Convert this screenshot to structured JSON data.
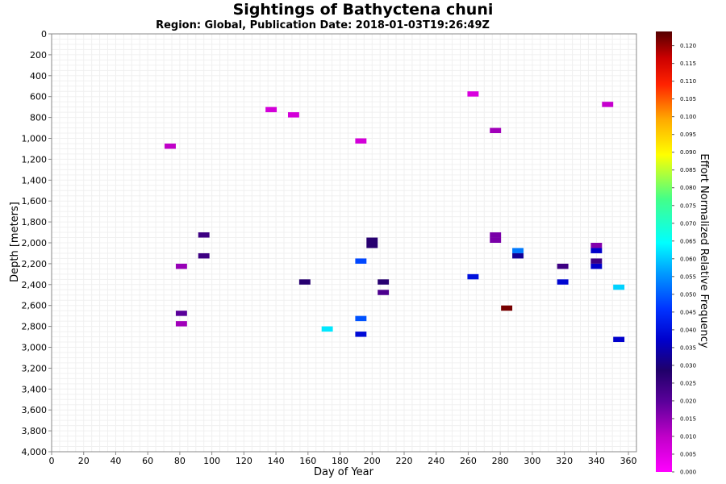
{
  "chart_data": {
    "type": "heatmap",
    "title": "Sightings of Bathyctena chuni",
    "subtitle": "Region: Global, Publication Date: 2018-01-03T19:26:49Z",
    "xlabel": "Day of Year",
    "ylabel": "Depth [meters]",
    "colorbar_label": "Effort Normalized Relative Frequency",
    "xlim": [
      0,
      365
    ],
    "ylim": [
      4000,
      0
    ],
    "x_ticks": [
      "0",
      "20",
      "40",
      "60",
      "80",
      "100",
      "120",
      "140",
      "160",
      "180",
      "200",
      "220",
      "240",
      "260",
      "280",
      "300",
      "320",
      "340",
      "360"
    ],
    "y_ticks": [
      "0",
      "200",
      "400",
      "600",
      "800",
      "1,000",
      "1,200",
      "1,400",
      "1,600",
      "1,800",
      "2,000",
      "2,200",
      "2,400",
      "2,600",
      "2,800",
      "3,000",
      "3,200",
      "3,400",
      "3,600",
      "3,800",
      "4,000"
    ],
    "colorbar_range": [
      0,
      0.124
    ],
    "colorbar_ticks": [
      "0.000",
      "0.005",
      "0.010",
      "0.015",
      "0.020",
      "0.025",
      "0.030",
      "0.035",
      "0.040",
      "0.045",
      "0.050",
      "0.055",
      "0.060",
      "0.065",
      "0.070",
      "0.075",
      "0.080",
      "0.085",
      "0.090",
      "0.095",
      "0.100",
      "0.105",
      "0.110",
      "0.115",
      "0.120"
    ],
    "grid": true,
    "cells": [
      {
        "day": 74,
        "depth": 1075,
        "value": 0.01
      },
      {
        "day": 81,
        "depth": 2225,
        "value": 0.014
      },
      {
        "day": 81,
        "depth": 2675,
        "value": 0.02
      },
      {
        "day": 81,
        "depth": 2775,
        "value": 0.013
      },
      {
        "day": 95,
        "depth": 1925,
        "value": 0.024
      },
      {
        "day": 95,
        "depth": 2125,
        "value": 0.024
      },
      {
        "day": 137,
        "depth": 725,
        "value": 0.007
      },
      {
        "day": 151,
        "depth": 775,
        "value": 0.007
      },
      {
        "day": 158,
        "depth": 2375,
        "value": 0.027
      },
      {
        "day": 172,
        "depth": 2825,
        "value": 0.063
      },
      {
        "day": 193,
        "depth": 1025,
        "value": 0.007
      },
      {
        "day": 193,
        "depth": 2175,
        "value": 0.048
      },
      {
        "day": 193,
        "depth": 2725,
        "value": 0.049
      },
      {
        "day": 193,
        "depth": 2875,
        "value": 0.039
      },
      {
        "day": 200,
        "depth": 1975,
        "value": 0.027
      },
      {
        "day": 200,
        "depth": 2025,
        "value": 0.027
      },
      {
        "day": 207,
        "depth": 2375,
        "value": 0.027
      },
      {
        "day": 207,
        "depth": 2475,
        "value": 0.022
      },
      {
        "day": 263,
        "depth": 575,
        "value": 0.006
      },
      {
        "day": 263,
        "depth": 2325,
        "value": 0.04
      },
      {
        "day": 277,
        "depth": 925,
        "value": 0.013
      },
      {
        "day": 277,
        "depth": 1925,
        "value": 0.017
      },
      {
        "day": 277,
        "depth": 1975,
        "value": 0.017
      },
      {
        "day": 284,
        "depth": 2625,
        "value": 0.122
      },
      {
        "day": 291,
        "depth": 2075,
        "value": 0.053
      },
      {
        "day": 291,
        "depth": 2125,
        "value": 0.032
      },
      {
        "day": 319,
        "depth": 2225,
        "value": 0.024
      },
      {
        "day": 319,
        "depth": 2375,
        "value": 0.038
      },
      {
        "day": 340,
        "depth": 2025,
        "value": 0.016
      },
      {
        "day": 340,
        "depth": 2075,
        "value": 0.037
      },
      {
        "day": 340,
        "depth": 2175,
        "value": 0.024
      },
      {
        "day": 340,
        "depth": 2225,
        "value": 0.037
      },
      {
        "day": 347,
        "depth": 675,
        "value": 0.009
      },
      {
        "day": 354,
        "depth": 2425,
        "value": 0.061
      },
      {
        "day": 354,
        "depth": 2925,
        "value": 0.037
      }
    ]
  }
}
